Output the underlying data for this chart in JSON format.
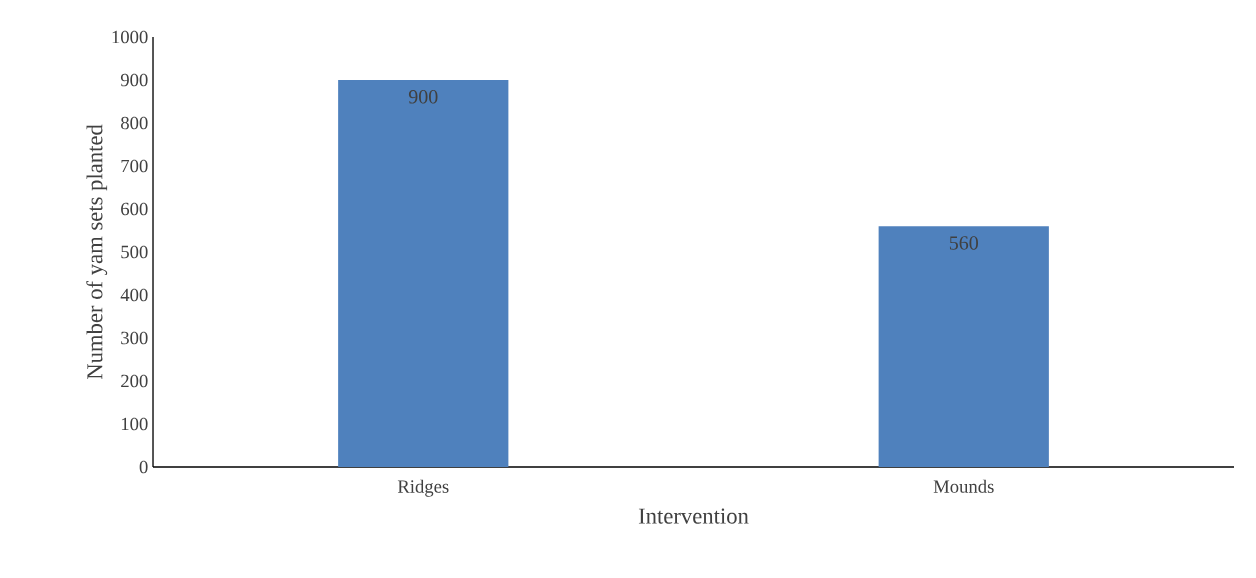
{
  "chart_data": {
    "type": "bar",
    "xlabel": "Intervention",
    "ylabel": "Number of yam sets planted",
    "categories": [
      "Ridges",
      "Mounds"
    ],
    "values": [
      900,
      560
    ],
    "color": "#4f81bd",
    "data_labels": true,
    "ylim": [
      0,
      1000
    ],
    "yticks": [
      0,
      100,
      200,
      300,
      400,
      500,
      600,
      700,
      800,
      900,
      1000
    ],
    "grid": false
  }
}
